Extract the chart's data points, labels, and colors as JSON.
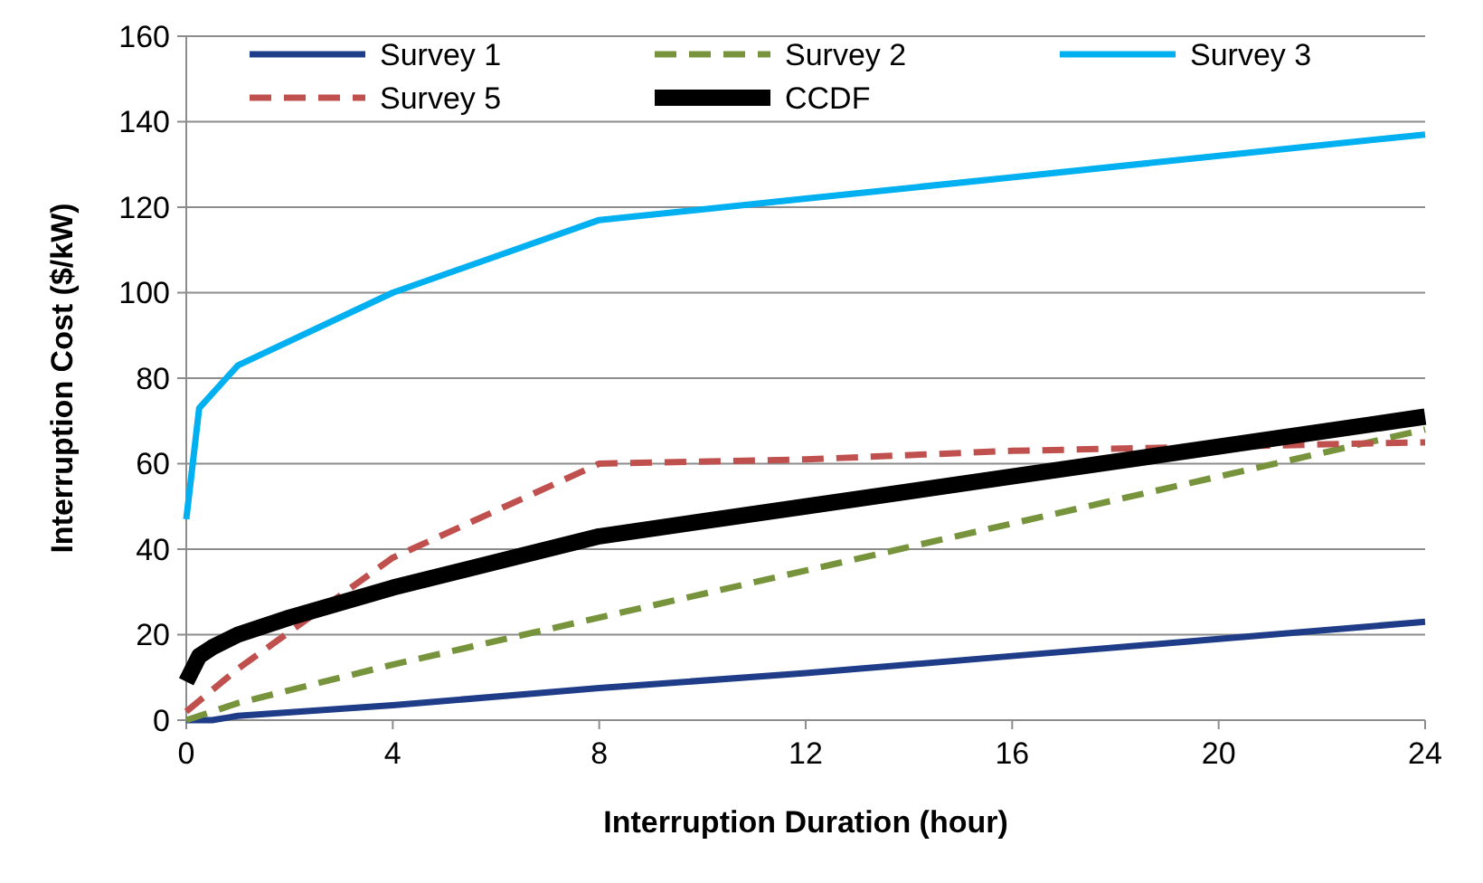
{
  "chart_data": {
    "type": "line",
    "xlabel": "Interruption Duration (hour)",
    "ylabel": "Interruption Cost ($/kW)",
    "xlim": [
      0,
      24
    ],
    "xticks": [
      0,
      4,
      8,
      12,
      16,
      20,
      24
    ],
    "ylim": [
      0,
      160
    ],
    "yticks": [
      0,
      20,
      40,
      60,
      80,
      100,
      120,
      140,
      160
    ],
    "grid": "y",
    "legend": "top",
    "series": [
      {
        "name": "Survey 1",
        "color": "#1f3c88",
        "line_style": "solid",
        "x": [
          0,
          0.5,
          1,
          4,
          8,
          12,
          16,
          20,
          24
        ],
        "values": [
          0,
          0,
          1,
          3.5,
          7.5,
          11,
          15,
          19,
          23
        ]
      },
      {
        "name": "Survey 2",
        "color": "#77933c",
        "line_style": "dashed",
        "x": [
          0,
          1,
          4,
          8,
          12,
          16,
          20,
          24
        ],
        "values": [
          0,
          4,
          13,
          24,
          35,
          46,
          57,
          68
        ]
      },
      {
        "name": "Survey 3",
        "color": "#00b0f0",
        "line_style": "solid",
        "x": [
          0,
          0.25,
          1,
          4,
          8,
          12,
          16,
          20,
          24
        ],
        "values": [
          47,
          73,
          83,
          100,
          117,
          122,
          127,
          132,
          137
        ]
      },
      {
        "name": "Survey 5",
        "color": "#c0504d",
        "line_style": "dashed",
        "x": [
          0,
          1,
          4,
          8,
          12,
          16,
          20,
          24
        ],
        "values": [
          2,
          12,
          38,
          60,
          61,
          63,
          64,
          65
        ]
      },
      {
        "name": "CCDF",
        "color": "#000000",
        "line_style": "solid",
        "x": [
          0,
          0.25,
          0.5,
          1,
          2,
          4,
          8,
          12,
          16,
          20,
          24
        ],
        "values": [
          9,
          15,
          17,
          20,
          24,
          31,
          43,
          50,
          57,
          64,
          71
        ]
      }
    ]
  }
}
